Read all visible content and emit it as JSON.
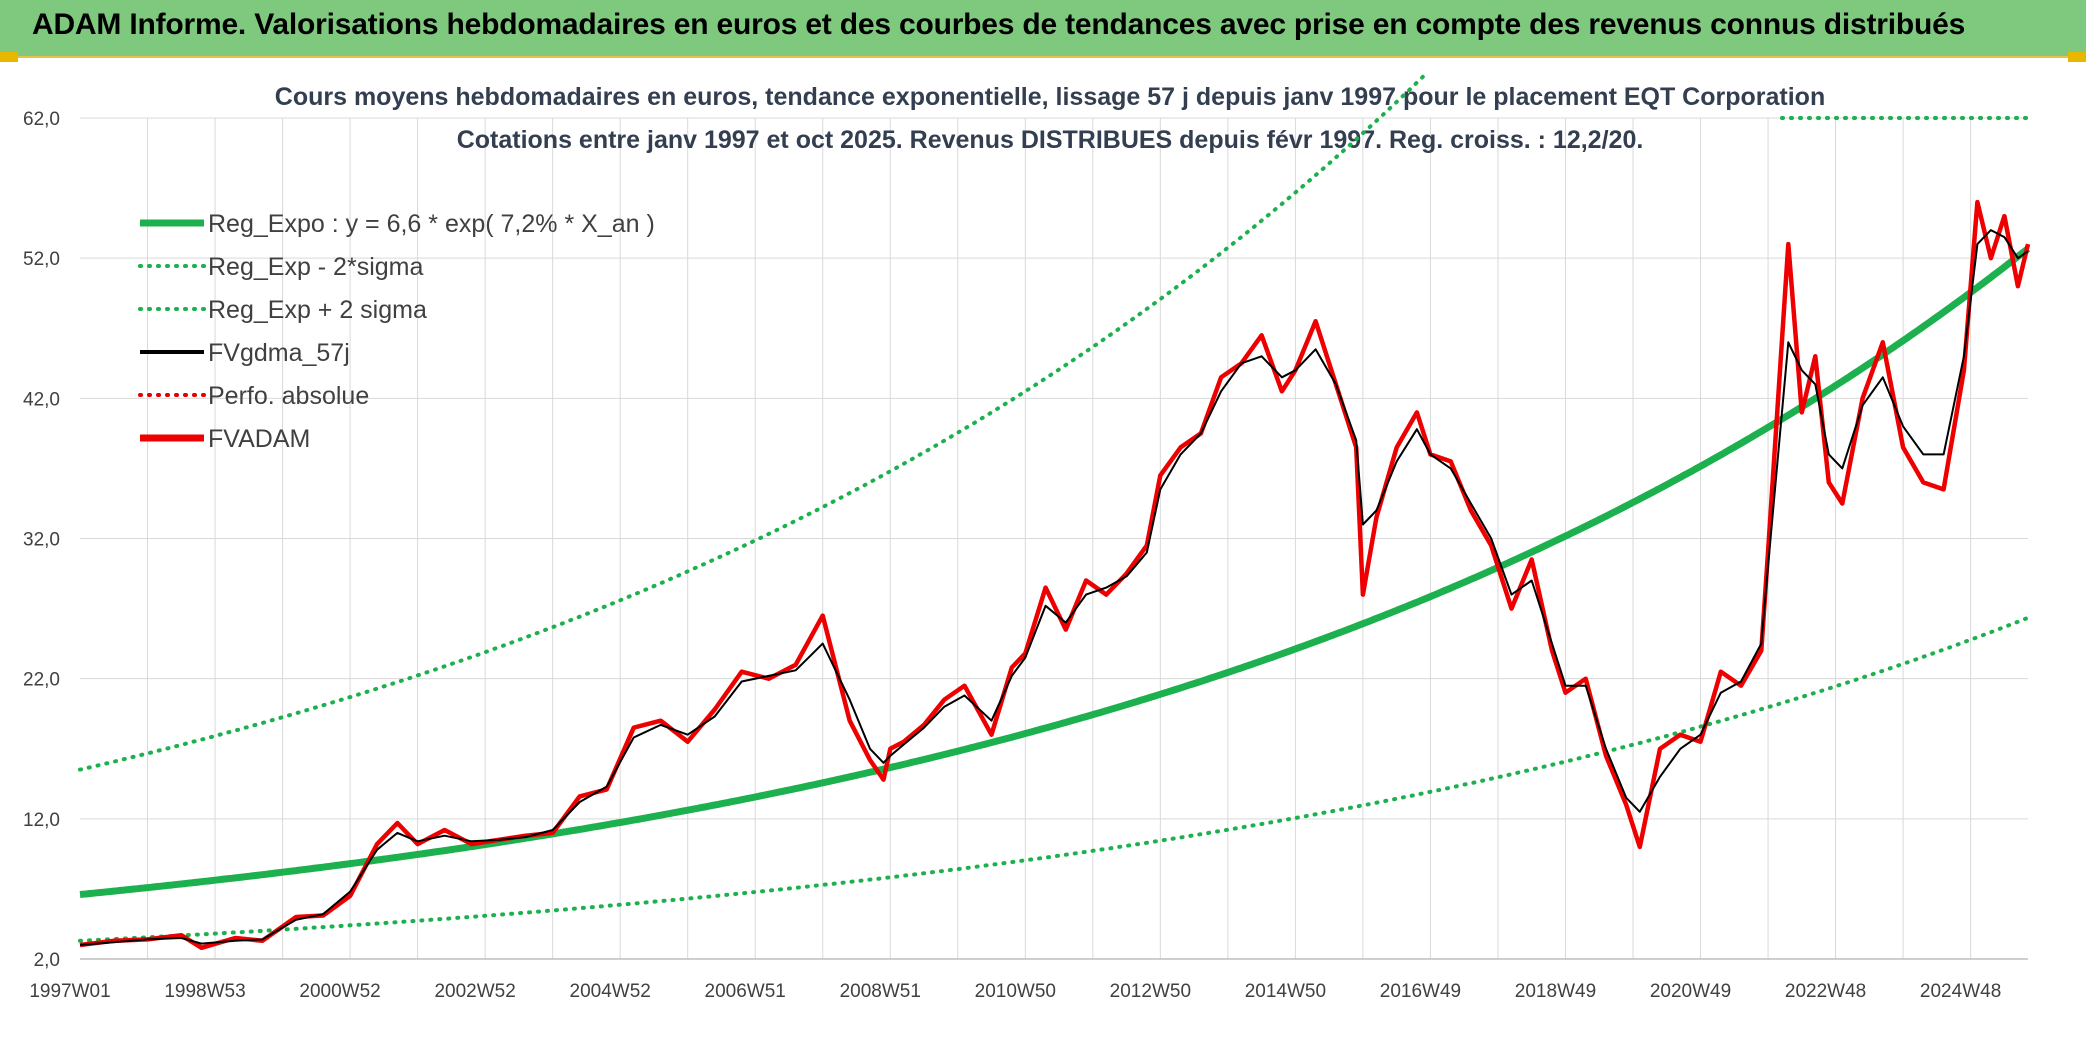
{
  "banner": {
    "title": "ADAM Informe. Valorisations hebdomadaires en euros et des courbes de tendances avec prise en compte des revenus connus distribués"
  },
  "chart_data": {
    "type": "line",
    "title": "Cours moyens hebdomadaires en euros, tendance exponentielle, lissage 57 j depuis janv 1997 pour le placement EQT Corporation",
    "subtitle": "Cotations entre janv 1997 et oct 2025. Revenus DISTRIBUES depuis févr 1997. Reg. croiss. : 12,2/20.",
    "x_tick_labels": [
      "1997W01",
      "1998W53",
      "2000W52",
      "2002W52",
      "2004W52",
      "2006W51",
      "2008W51",
      "2010W50",
      "2012W50",
      "2014W50",
      "2016W49",
      "2018W49",
      "2020W49",
      "2022W48",
      "2024W48"
    ],
    "x_tick_years": [
      1997,
      1999,
      2001,
      2003,
      2005,
      2007,
      2009,
      2011,
      2013,
      2015,
      2017,
      2019,
      2021,
      2023,
      2025
    ],
    "x_range": [
      1997,
      2025.85
    ],
    "y_tick_labels": [
      "2,0",
      "12,0",
      "22,0",
      "32,0",
      "42,0",
      "52,0",
      "62,0"
    ],
    "y_ticks": [
      2,
      12,
      22,
      32,
      42,
      52,
      62
    ],
    "ylim": [
      2,
      62
    ],
    "grid": true,
    "legend_position": "top-left",
    "legend": [
      {
        "label": "Reg_Expo : y = 6,6 * exp( 7,2% *  X_an )",
        "color": "#1db04f",
        "style": "solid-thick"
      },
      {
        "label": "Reg_Exp - 2*sigma",
        "color": "#1db04f",
        "style": "dotted"
      },
      {
        "label": "Reg_Exp + 2 sigma",
        "color": "#1db04f",
        "style": "dotted"
      },
      {
        "label": "FVgdma_57j",
        "color": "#000000",
        "style": "solid"
      },
      {
        "label": "Perfo. absolue",
        "color": "#e00000",
        "style": "dotted"
      },
      {
        "label": "FVADAM",
        "color": "#ee0000",
        "style": "solid-thick"
      }
    ],
    "series": [
      {
        "name": "FVADAM",
        "color": "#ee0000",
        "x": [
          1997.0,
          1997.5,
          1998.0,
          1998.5,
          1998.8,
          1999.3,
          1999.7,
          2000.2,
          2000.6,
          2001.0,
          2001.4,
          2001.7,
          2002.0,
          2002.4,
          2002.8,
          2003.2,
          2003.6,
          2004.0,
          2004.4,
          2004.8,
          2005.2,
          2005.6,
          2006.0,
          2006.4,
          2006.8,
          2007.2,
          2007.6,
          2008.0,
          2008.4,
          2008.7,
          2008.9,
          2009.0,
          2009.2,
          2009.5,
          2009.8,
          2010.1,
          2010.5,
          2010.8,
          2011.0,
          2011.3,
          2011.6,
          2011.9,
          2012.2,
          2012.5,
          2012.8,
          2013.0,
          2013.3,
          2013.6,
          2013.9,
          2014.2,
          2014.5,
          2014.8,
          2015.0,
          2015.3,
          2015.6,
          2015.9,
          2016.0,
          2016.2,
          2016.5,
          2016.8,
          2017.0,
          2017.3,
          2017.6,
          2017.9,
          2018.2,
          2018.5,
          2018.8,
          2019.0,
          2019.3,
          2019.6,
          2019.9,
          2020.1,
          2020.4,
          2020.7,
          2021.0,
          2021.3,
          2021.6,
          2021.9,
          2022.0,
          2022.3,
          2022.5,
          2022.7,
          2022.9,
          2023.1,
          2023.4,
          2023.7,
          2024.0,
          2024.3,
          2024.6,
          2024.9,
          2025.1,
          2025.3,
          2025.5,
          2025.7,
          2025.85
        ],
        "y": [
          3.0,
          3.3,
          3.4,
          3.7,
          2.8,
          3.5,
          3.3,
          5.0,
          5.1,
          6.5,
          10.2,
          11.7,
          10.2,
          11.2,
          10.2,
          10.5,
          10.8,
          11.0,
          13.6,
          14.1,
          18.5,
          19.0,
          17.5,
          19.8,
          22.5,
          22.0,
          23.0,
          26.5,
          19.0,
          16.2,
          14.8,
          17.0,
          17.5,
          18.7,
          20.5,
          21.5,
          18.0,
          22.8,
          23.8,
          28.5,
          25.5,
          29.0,
          28.0,
          29.5,
          31.5,
          36.5,
          38.5,
          39.5,
          43.5,
          44.5,
          46.5,
          42.5,
          44.0,
          47.5,
          43.0,
          38.5,
          28.0,
          33.5,
          38.5,
          41.0,
          38.0,
          37.5,
          34.0,
          31.5,
          27.0,
          30.5,
          24.0,
          21.0,
          22.0,
          16.5,
          13.0,
          10.0,
          17.0,
          18.0,
          17.5,
          22.5,
          21.5,
          24.0,
          31.0,
          53.0,
          41.0,
          45.0,
          36.0,
          34.5,
          42.0,
          46.0,
          38.5,
          36.0,
          35.5,
          44.0,
          56.0,
          52.0,
          55.0,
          50.0,
          53.0
        ]
      },
      {
        "name": "FVgdma_57j",
        "color": "#000000",
        "x": [
          1997.0,
          1997.5,
          1998.0,
          1998.5,
          1998.8,
          1999.3,
          1999.7,
          2000.2,
          2000.6,
          2001.0,
          2001.4,
          2001.7,
          2002.0,
          2002.4,
          2002.8,
          2003.2,
          2003.6,
          2004.0,
          2004.4,
          2004.8,
          2005.2,
          2005.6,
          2006.0,
          2006.4,
          2006.8,
          2007.2,
          2007.6,
          2008.0,
          2008.4,
          2008.7,
          2008.9,
          2009.0,
          2009.2,
          2009.5,
          2009.8,
          2010.1,
          2010.5,
          2010.8,
          2011.0,
          2011.3,
          2011.6,
          2011.9,
          2012.2,
          2012.5,
          2012.8,
          2013.0,
          2013.3,
          2013.6,
          2013.9,
          2014.2,
          2014.5,
          2014.8,
          2015.0,
          2015.3,
          2015.6,
          2015.9,
          2016.0,
          2016.2,
          2016.5,
          2016.8,
          2017.0,
          2017.3,
          2017.6,
          2017.9,
          2018.2,
          2018.5,
          2018.8,
          2019.0,
          2019.3,
          2019.6,
          2019.9,
          2020.1,
          2020.4,
          2020.7,
          2021.0,
          2021.3,
          2021.6,
          2021.9,
          2022.0,
          2022.3,
          2022.5,
          2022.7,
          2022.9,
          2023.1,
          2023.4,
          2023.7,
          2024.0,
          2024.3,
          2024.6,
          2024.9,
          2025.1,
          2025.3,
          2025.5,
          2025.7,
          2025.85
        ],
        "y": [
          3.0,
          3.2,
          3.4,
          3.5,
          3.1,
          3.3,
          3.4,
          4.8,
          5.2,
          6.8,
          9.8,
          11.0,
          10.4,
          10.8,
          10.4,
          10.5,
          10.7,
          11.2,
          13.2,
          14.3,
          17.8,
          18.7,
          18.0,
          19.3,
          21.8,
          22.2,
          22.6,
          24.5,
          20.5,
          17.0,
          16.0,
          16.5,
          17.3,
          18.5,
          20.0,
          20.8,
          19.0,
          22.2,
          23.5,
          27.2,
          26.0,
          28.0,
          28.5,
          29.3,
          31.0,
          35.5,
          38.0,
          39.5,
          42.5,
          44.5,
          45.0,
          43.5,
          44.0,
          45.5,
          43.0,
          39.0,
          33.0,
          34.0,
          37.5,
          39.8,
          38.0,
          37.0,
          34.5,
          32.0,
          28.0,
          29.0,
          24.5,
          21.5,
          21.5,
          17.0,
          13.5,
          12.5,
          15.0,
          17.0,
          18.0,
          21.0,
          21.8,
          24.5,
          30.0,
          46.0,
          44.0,
          43.0,
          38.0,
          37.0,
          41.5,
          43.5,
          40.0,
          38.0,
          38.0,
          45.0,
          53.0,
          54.0,
          53.5,
          52.0,
          52.5
        ]
      },
      {
        "name": "Reg_Expo",
        "color": "#1db04f",
        "formula": "y = 6,6 * exp( 7,2% *  X_an )"
      },
      {
        "name": "Reg_Exp - 2*sigma",
        "color": "#1db04f"
      },
      {
        "name": "Reg_Exp + 2 sigma",
        "color": "#1db04f"
      }
    ]
  }
}
